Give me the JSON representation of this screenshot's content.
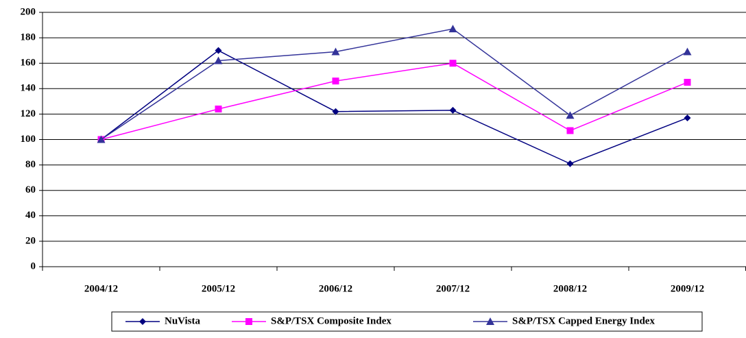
{
  "chart_data": {
    "type": "line",
    "categories": [
      "2004/12",
      "2005/12",
      "2006/12",
      "2007/12",
      "2008/12",
      "2009/12"
    ],
    "series": [
      {
        "name": "NuVista",
        "color": "#000080",
        "marker": "diamond",
        "values": [
          100,
          170,
          122,
          123,
          81,
          117
        ]
      },
      {
        "name": "S&P/TSX Composite Index",
        "color": "#ff00ff",
        "marker": "square",
        "values": [
          100,
          124,
          146,
          160,
          107,
          145
        ]
      },
      {
        "name": "S&P/TSX Capped Energy Index",
        "color": "#333399",
        "marker": "triangle",
        "values": [
          100,
          162,
          169,
          187,
          119,
          169
        ]
      }
    ],
    "ylim": [
      0,
      200
    ],
    "yticks": [
      0,
      20,
      40,
      60,
      80,
      100,
      120,
      140,
      160,
      180,
      200
    ],
    "grid": true,
    "legend": "bottom"
  }
}
